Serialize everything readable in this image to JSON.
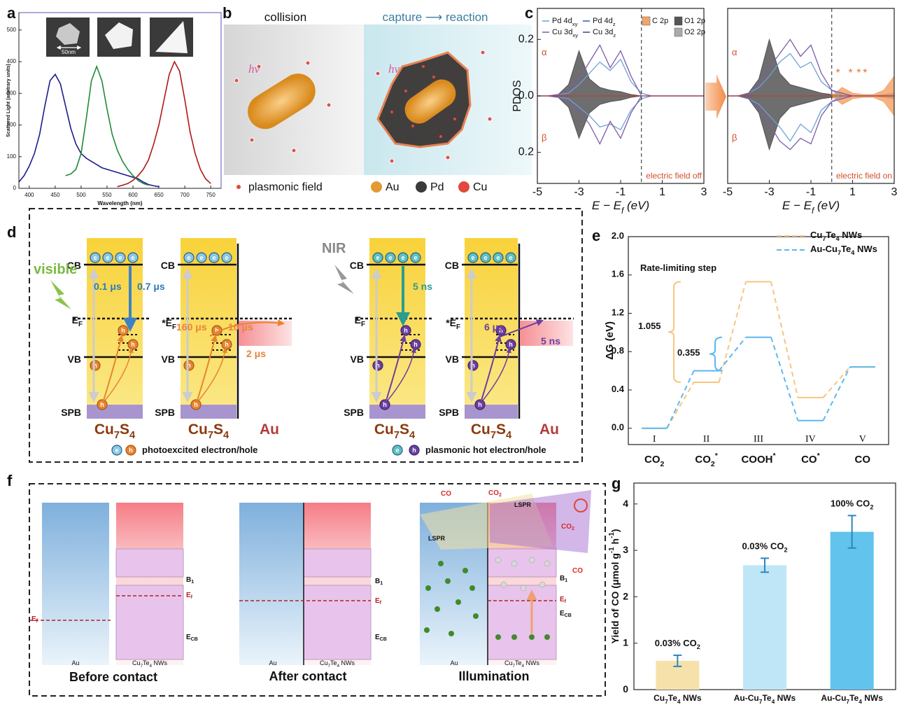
{
  "panel_labels": [
    "a",
    "b",
    "c",
    "d",
    "e",
    "f",
    "g"
  ],
  "chart_data": [
    {
      "type": "line",
      "xlabel": "Wavelength (nm)",
      "ylabel": "Scattered Light (arbitrary units)",
      "inset_scale": "50nm",
      "x": [
        380,
        390,
        400,
        410,
        420,
        430,
        440,
        450,
        460,
        470,
        480,
        490,
        500,
        510,
        520,
        530,
        540,
        550,
        560,
        570,
        580,
        590,
        600,
        610,
        620,
        630,
        640,
        650,
        660,
        670,
        680,
        690,
        700,
        710,
        720,
        730,
        740,
        750
      ],
      "xlim": [
        380,
        770
      ],
      "ylim": [
        0,
        555
      ],
      "xticks": [
        400,
        450,
        500,
        550,
        600,
        650,
        700,
        750
      ],
      "yticks": [
        0,
        100,
        200,
        300,
        400,
        500
      ],
      "series": [
        {
          "color": "#1c1c8e",
          "values": [
            20,
            40,
            70,
            110,
            170,
            260,
            340,
            360,
            330,
            260,
            190,
            140,
            110,
            95,
            85,
            75,
            65,
            60,
            55,
            50,
            45,
            40,
            35,
            30,
            20,
            12,
            8,
            5,
            null,
            null,
            null,
            null,
            null,
            null,
            null,
            null,
            null,
            null
          ]
        },
        {
          "color": "#1e8a3a",
          "values": [
            null,
            null,
            null,
            null,
            null,
            null,
            null,
            null,
            null,
            40,
            45,
            60,
            110,
            220,
            340,
            385,
            340,
            250,
            170,
            120,
            85,
            60,
            40,
            25,
            15,
            10,
            null,
            null,
            null,
            null,
            null,
            null,
            null,
            null,
            null,
            null,
            null,
            null
          ]
        },
        {
          "color": "#b01818",
          "values": [
            null,
            null,
            null,
            null,
            null,
            null,
            null,
            null,
            null,
            null,
            null,
            null,
            null,
            null,
            null,
            null,
            null,
            null,
            null,
            5,
            10,
            15,
            25,
            40,
            60,
            90,
            140,
            200,
            280,
            360,
            400,
            370,
            280,
            180,
            110,
            60,
            30,
            15
          ]
        }
      ]
    },
    {
      "type": "pdos",
      "ylabel": "PDOS",
      "xlabel": "E − Ef (eV)",
      "annotation": "electric field off",
      "spin_up": "α",
      "spin_down": "β",
      "x": [
        -5,
        -4.5,
        -4,
        -3.5,
        -3,
        -2.5,
        -2,
        -1.5,
        -1,
        -0.5,
        0,
        0.5,
        1,
        1.5,
        2,
        2.5,
        3
      ],
      "xlim": [
        -5,
        3
      ],
      "ylim": [
        -0.31,
        0.31
      ],
      "xticks": [
        -5,
        -3,
        -1,
        1,
        3
      ],
      "yticks": [
        {
          "value": 0.2,
          "label": "0.2"
        },
        {
          "value": 0,
          "label": "0.0"
        },
        {
          "value": -0.2,
          "label": "0.2"
        }
      ],
      "vline": 0,
      "legend": [
        {
          "name": "Pd 4dxy",
          "color": "#6f9fd8",
          "style": "line"
        },
        {
          "name": "Pd 4dz",
          "color": "#2d5fa8",
          "style": "line"
        },
        {
          "name": "Cu 3dxy",
          "color": "#7b5ea7",
          "style": "line"
        },
        {
          "name": "Cu 3dz",
          "color": "#4b3a7a",
          "style": "line"
        },
        {
          "name": "C 2p",
          "color": "#f4a46a",
          "style": "area"
        },
        {
          "name": "O1 2p",
          "color": "#555555",
          "style": "area"
        },
        {
          "name": "O2 2p",
          "color": "#aaaaaa",
          "style": "area"
        }
      ],
      "series": [
        {
          "name": "O1 2p",
          "style": "area",
          "color": "#555555",
          "values": [
            0,
            0,
            0.005,
            0.04,
            0.16,
            0.06,
            0.03,
            0.02,
            0.015,
            0.005,
            0,
            0,
            0,
            0,
            0,
            0,
            0
          ],
          "beta": [
            0,
            0,
            -0.005,
            -0.04,
            -0.15,
            -0.06,
            -0.03,
            -0.02,
            -0.015,
            -0.005,
            0,
            0,
            0,
            0,
            0,
            0,
            0
          ]
        },
        {
          "name": "Pd 4dxy",
          "style": "line",
          "color": "#6f9fd8",
          "values": [
            0,
            0,
            0.005,
            0.01,
            0.04,
            0.08,
            0.12,
            0.09,
            0.13,
            0.05,
            0.01,
            0,
            0,
            0,
            0,
            0,
            0
          ],
          "beta": [
            0,
            0,
            -0.005,
            -0.01,
            -0.04,
            -0.07,
            -0.11,
            -0.1,
            -0.12,
            -0.05,
            -0.01,
            0,
            0,
            0,
            0,
            0,
            0
          ]
        },
        {
          "name": "Cu 3dxy",
          "style": "line",
          "color": "#7b5ea7",
          "values": [
            0,
            0,
            0.005,
            0.02,
            0.06,
            0.12,
            0.18,
            0.1,
            0.16,
            0.07,
            0,
            0,
            0,
            0,
            0,
            0,
            0
          ],
          "beta": [
            0,
            0,
            -0.005,
            -0.02,
            -0.05,
            -0.1,
            -0.17,
            -0.09,
            -0.15,
            -0.06,
            0,
            0,
            0,
            0,
            0,
            0,
            0
          ]
        }
      ]
    },
    {
      "type": "pdos",
      "xlabel": "E − Ef (eV)",
      "annotation": "electric field on",
      "spin_up": "α",
      "spin_down": "β",
      "x": [
        -5,
        -4.5,
        -4,
        -3.5,
        -3,
        -2.5,
        -2,
        -1.5,
        -1,
        -0.5,
        0,
        0.5,
        1,
        1.5,
        2,
        2.5,
        3
      ],
      "xlim": [
        -5,
        3
      ],
      "ylim": [
        -0.31,
        0.31
      ],
      "xticks": [
        -5,
        -3,
        -1,
        1,
        3
      ],
      "vline": 0,
      "star": "*",
      "marked_x": [
        0.3,
        0.9,
        1.3,
        1.6
      ],
      "series": [
        {
          "name": "O1 2p",
          "style": "area",
          "color": "#555555",
          "values": [
            0,
            0,
            0.01,
            0.06,
            0.2,
            0.08,
            0.04,
            0.03,
            0.02,
            0.01,
            0.005,
            0.01,
            0,
            0,
            0,
            0.005,
            0.01
          ],
          "beta": [
            0,
            0,
            -0.01,
            -0.06,
            -0.19,
            -0.08,
            -0.04,
            -0.03,
            -0.02,
            -0.01,
            -0.005,
            -0.01,
            0,
            0,
            0,
            -0.005,
            -0.01
          ]
        },
        {
          "name": "C 2p",
          "style": "area",
          "color": "#f4a46a",
          "values": [
            0,
            0,
            0,
            0,
            0,
            0,
            0,
            0,
            0,
            0,
            0,
            0.03,
            0.01,
            0.005,
            0.005,
            0.02,
            0.07
          ],
          "beta": [
            0,
            0,
            0,
            0,
            0,
            0,
            0,
            0,
            0,
            0,
            0,
            -0.03,
            -0.01,
            -0.005,
            -0.005,
            -0.02,
            -0.07
          ]
        },
        {
          "name": "Pd 4dxy",
          "style": "line",
          "color": "#6f9fd8",
          "values": [
            0,
            0,
            0.01,
            0.03,
            0.07,
            0.12,
            0.15,
            0.1,
            0.12,
            0.05,
            0.02,
            0,
            0,
            0,
            0,
            0,
            0
          ],
          "beta": [
            0,
            0,
            -0.01,
            -0.03,
            -0.07,
            -0.11,
            -0.16,
            -0.1,
            -0.13,
            -0.05,
            -0.02,
            0,
            0,
            0,
            0,
            0,
            0
          ]
        },
        {
          "name": "Cu 3dxy",
          "style": "line",
          "color": "#7b5ea7",
          "values": [
            0,
            0,
            0.01,
            0.04,
            0.1,
            0.15,
            0.2,
            0.14,
            0.18,
            0.08,
            0.02,
            0.01,
            0,
            0,
            0,
            0,
            0
          ],
          "beta": [
            0,
            0,
            -0.01,
            -0.04,
            -0.1,
            -0.16,
            -0.19,
            -0.15,
            -0.17,
            -0.07,
            -0.02,
            -0.01,
            0,
            0,
            0,
            0,
            0
          ]
        }
      ]
    },
    {
      "type": "step",
      "ylabel": "ΔG (eV)",
      "categories": [
        "I",
        "II",
        "III",
        "IV",
        "V"
      ],
      "species": [
        "CO2",
        "CO2*",
        "COOH*",
        "CO*",
        "CO"
      ],
      "ylim": [
        -0.17,
        2.0
      ],
      "yticks": [
        {
          "value": 0,
          "label": "0.0"
        },
        0.4,
        0.8,
        1.2,
        1.6,
        {
          "value": 2,
          "label": "2.0"
        }
      ],
      "series": [
        {
          "name": "Cu7Te4 NWs",
          "color": "#f5c67e",
          "values": [
            0,
            0.48,
            1.53,
            0.32,
            0.64
          ]
        },
        {
          "name": "Au-Cu7Te4 NWs",
          "color": "#5db7ef",
          "values": [
            0,
            0.6,
            0.95,
            0.08,
            0.64
          ]
        }
      ],
      "annotations": [
        "Rate-limiting step",
        "1.055",
        "0.355"
      ]
    },
    {
      "type": "bar",
      "ylabel": "Yield of CO (μmol g-1 h-1)",
      "categories": [
        "Cu7Te4 NWs",
        "Au-Cu7Te4 NWs",
        "Au-Cu7Te4 NWs"
      ],
      "values": [
        0.62,
        2.68,
        3.4
      ],
      "errors": [
        0.12,
        0.15,
        0.35
      ],
      "annotations": [
        "0.03% CO2",
        "0.03% CO2",
        "100% CO2"
      ],
      "colors": [
        "#f7e1ab",
        "#bfe6f6",
        "#62c3ec"
      ],
      "error_color": "#2a86c0",
      "ylim": [
        0,
        4.45
      ],
      "yticks": [
        0,
        1,
        2,
        3,
        4
      ]
    }
  ],
  "panel_b": {
    "left_title": "collision",
    "right_title": "capture ⟶ reaction",
    "photon": "hν",
    "legend": [
      "plasmonic field",
      "Au",
      "Pd",
      "Cu"
    ]
  },
  "panel_d": {
    "light": [
      "visible",
      "NIR"
    ],
    "levels": [
      "CB",
      "EF",
      "VB",
      "SPB"
    ],
    "fermi_interface": "*EF",
    "left_times": [
      "0.1 μs",
      "0.7 μs",
      "160 μs",
      "10 μs",
      "2 μs"
    ],
    "right_times": [
      "5 ns",
      "6 μs",
      "5 ns"
    ],
    "materials": [
      "Cu7S4",
      "Au"
    ],
    "carrier_labels": [
      "photoexcited electron/hole",
      "plasmonic hot electron/hole"
    ],
    "e": "e",
    "h": "h"
  },
  "panel_f": {
    "stages": [
      "Before contact",
      "After contact",
      "Illumination"
    ],
    "metal": "Au",
    "semiconductor": "Cu7Te4 NWs",
    "levels": [
      "B1",
      "Ef",
      "ECB"
    ],
    "molecules": [
      "CO",
      "CO2"
    ],
    "lspr": "LSPR"
  }
}
